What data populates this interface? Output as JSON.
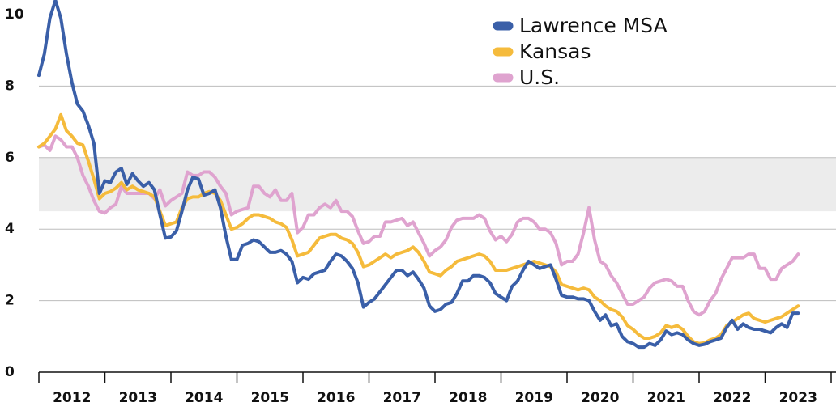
{
  "chart_data": {
    "type": "line",
    "x": [
      2012,
      2012.083,
      2012.167,
      2012.25,
      2012.333,
      2012.417,
      2012.5,
      2012.583,
      2012.667,
      2012.75,
      2012.833,
      2012.917,
      2013,
      2013.083,
      2013.167,
      2013.25,
      2013.333,
      2013.417,
      2013.5,
      2013.583,
      2013.667,
      2013.75,
      2013.833,
      2013.917,
      2014,
      2014.083,
      2014.167,
      2014.25,
      2014.333,
      2014.417,
      2014.5,
      2014.583,
      2014.667,
      2014.75,
      2014.833,
      2014.917,
      2015,
      2015.083,
      2015.167,
      2015.25,
      2015.333,
      2015.417,
      2015.5,
      2015.583,
      2015.667,
      2015.75,
      2015.833,
      2015.917,
      2016,
      2016.083,
      2016.167,
      2016.25,
      2016.333,
      2016.417,
      2016.5,
      2016.583,
      2016.667,
      2016.75,
      2016.833,
      2016.917,
      2017,
      2017.083,
      2017.167,
      2017.25,
      2017.333,
      2017.417,
      2017.5,
      2017.583,
      2017.667,
      2017.75,
      2017.833,
      2017.917,
      2018,
      2018.083,
      2018.167,
      2018.25,
      2018.333,
      2018.417,
      2018.5,
      2018.583,
      2018.667,
      2018.75,
      2018.833,
      2018.917,
      2019,
      2019.083,
      2019.167,
      2019.25,
      2019.333,
      2019.417,
      2019.5,
      2019.583,
      2019.667,
      2019.75,
      2019.833,
      2019.917,
      2020,
      2020.083,
      2020.167,
      2020.25,
      2020.333,
      2020.417,
      2020.5,
      2020.583,
      2020.667,
      2020.75,
      2020.833,
      2020.917,
      2021,
      2021.083,
      2021.167,
      2021.25,
      2021.333,
      2021.417,
      2021.5,
      2021.583,
      2021.667,
      2021.75,
      2021.833,
      2021.917,
      2022,
      2022.083,
      2022.167,
      2022.25,
      2022.333,
      2022.417,
      2022.5,
      2022.583,
      2022.667,
      2022.75,
      2022.833,
      2022.917,
      2023,
      2023.083,
      2023.167,
      2023.25,
      2023.333,
      2023.417,
      2023.5
    ],
    "series": [
      {
        "name": "Lawrence MSA",
        "color": "#3a5fa8",
        "values": [
          8.3,
          8.9,
          9.9,
          10.4,
          9.9,
          8.9,
          8.1,
          7.5,
          7.3,
          6.9,
          6.4,
          5.0,
          5.35,
          5.3,
          5.6,
          5.7,
          5.25,
          5.55,
          5.35,
          5.2,
          5.3,
          5.1,
          4.4,
          3.75,
          3.78,
          3.95,
          4.5,
          5.1,
          5.45,
          5.4,
          4.95,
          5.0,
          5.1,
          4.6,
          3.8,
          3.15,
          3.15,
          3.55,
          3.6,
          3.7,
          3.65,
          3.5,
          3.35,
          3.35,
          3.4,
          3.3,
          3.1,
          2.5,
          2.65,
          2.6,
          2.75,
          2.8,
          2.85,
          3.1,
          3.3,
          3.25,
          3.1,
          2.9,
          2.5,
          1.82,
          1.95,
          2.05,
          2.25,
          2.45,
          2.65,
          2.85,
          2.85,
          2.7,
          2.8,
          2.6,
          2.35,
          1.85,
          1.7,
          1.75,
          1.9,
          1.95,
          2.2,
          2.55,
          2.55,
          2.7,
          2.7,
          2.65,
          2.5,
          2.2,
          2.1,
          2.0,
          2.4,
          2.55,
          2.85,
          3.1,
          3.0,
          2.9,
          2.95,
          3.0,
          2.6,
          2.15,
          2.1,
          2.1,
          2.05,
          2.05,
          2.0,
          1.7,
          1.45,
          1.6,
          1.3,
          1.35,
          1.0,
          0.85,
          0.8,
          0.7,
          0.7,
          0.8,
          0.75,
          0.9,
          1.15,
          1.05,
          1.1,
          1.05,
          0.9,
          0.8,
          0.75,
          0.78,
          0.85,
          0.9,
          0.95,
          1.25,
          1.45,
          1.2,
          1.35,
          1.25,
          1.2,
          1.2,
          1.15,
          1.1,
          1.25,
          1.35,
          1.25,
          1.65,
          1.65
        ]
      },
      {
        "name": "Kansas",
        "color": "#f5bb3c",
        "values": [
          6.3,
          6.4,
          6.6,
          6.8,
          7.2,
          6.75,
          6.6,
          6.4,
          6.35,
          5.9,
          5.4,
          4.85,
          5.0,
          5.05,
          5.15,
          5.3,
          5.1,
          5.2,
          5.1,
          5.05,
          5.0,
          4.9,
          4.5,
          4.1,
          4.15,
          4.2,
          4.6,
          4.85,
          4.9,
          4.9,
          5.0,
          5.05,
          5.0,
          4.8,
          4.4,
          4.0,
          4.05,
          4.15,
          4.3,
          4.4,
          4.4,
          4.35,
          4.3,
          4.2,
          4.15,
          4.05,
          3.7,
          3.25,
          3.3,
          3.35,
          3.55,
          3.75,
          3.8,
          3.85,
          3.85,
          3.75,
          3.7,
          3.6,
          3.35,
          2.95,
          3.0,
          3.1,
          3.2,
          3.3,
          3.2,
          3.3,
          3.35,
          3.4,
          3.5,
          3.35,
          3.1,
          2.8,
          2.75,
          2.7,
          2.85,
          2.95,
          3.1,
          3.15,
          3.2,
          3.25,
          3.3,
          3.25,
          3.1,
          2.85,
          2.85,
          2.85,
          2.9,
          2.95,
          3.0,
          3.05,
          3.1,
          3.05,
          3.0,
          2.95,
          2.8,
          2.45,
          2.4,
          2.35,
          2.3,
          2.35,
          2.3,
          2.1,
          2.0,
          1.85,
          1.75,
          1.7,
          1.55,
          1.3,
          1.2,
          1.05,
          0.95,
          0.95,
          1.0,
          1.1,
          1.3,
          1.25,
          1.3,
          1.2,
          1.0,
          0.85,
          0.8,
          0.82,
          0.9,
          0.95,
          1.05,
          1.3,
          1.4,
          1.5,
          1.6,
          1.65,
          1.5,
          1.45,
          1.4,
          1.45,
          1.5,
          1.55,
          1.65,
          1.75,
          1.85
        ]
      },
      {
        "name": "U.S.",
        "color": "#dfa3cf",
        "values": [
          6.3,
          6.35,
          6.2,
          6.6,
          6.5,
          6.3,
          6.3,
          6.0,
          5.5,
          5.2,
          4.8,
          4.5,
          4.45,
          4.6,
          4.7,
          5.2,
          5.0,
          5.0,
          5.0,
          5.0,
          5.0,
          4.85,
          5.1,
          4.65,
          4.8,
          4.9,
          5.0,
          5.6,
          5.5,
          5.5,
          5.6,
          5.6,
          5.45,
          5.2,
          5.0,
          4.4,
          4.5,
          4.55,
          4.6,
          5.2,
          5.2,
          5.0,
          4.9,
          5.1,
          4.8,
          4.8,
          5.0,
          3.9,
          4.05,
          4.4,
          4.4,
          4.6,
          4.7,
          4.6,
          4.8,
          4.5,
          4.5,
          4.35,
          3.95,
          3.6,
          3.65,
          3.8,
          3.8,
          4.2,
          4.2,
          4.25,
          4.3,
          4.1,
          4.2,
          3.9,
          3.6,
          3.25,
          3.4,
          3.5,
          3.7,
          4.05,
          4.25,
          4.3,
          4.3,
          4.3,
          4.4,
          4.3,
          3.95,
          3.7,
          3.8,
          3.65,
          3.85,
          4.2,
          4.3,
          4.3,
          4.2,
          4.0,
          4.0,
          3.9,
          3.6,
          3.0,
          3.1,
          3.1,
          3.3,
          3.9,
          4.6,
          3.7,
          3.1,
          3.0,
          2.7,
          2.5,
          2.2,
          1.9,
          1.9,
          2.0,
          2.1,
          2.35,
          2.5,
          2.55,
          2.6,
          2.55,
          2.4,
          2.4,
          2.0,
          1.7,
          1.6,
          1.7,
          2.0,
          2.2,
          2.6,
          2.9,
          3.2,
          3.2,
          3.2,
          3.3,
          3.3,
          2.9,
          2.9,
          2.6,
          2.6,
          2.9,
          3.0,
          3.1,
          3.3
        ]
      }
    ],
    "xlim": [
      2012,
      2024
    ],
    "xticks": [
      2012,
      2013,
      2014,
      2015,
      2016,
      2017,
      2018,
      2019,
      2020,
      2021,
      2022,
      2023,
      2024
    ],
    "x_labels": [
      "2012",
      "2013",
      "2014",
      "2015",
      "2016",
      "2017",
      "2018",
      "2019",
      "2020",
      "2021",
      "2022",
      "2023"
    ],
    "ylim": [
      0,
      10
    ],
    "yticks": [
      0,
      2,
      4,
      6,
      8,
      10
    ],
    "band": [
      4.5,
      6
    ],
    "band_color": "#ececec",
    "grid": true,
    "legend": "top-right"
  }
}
